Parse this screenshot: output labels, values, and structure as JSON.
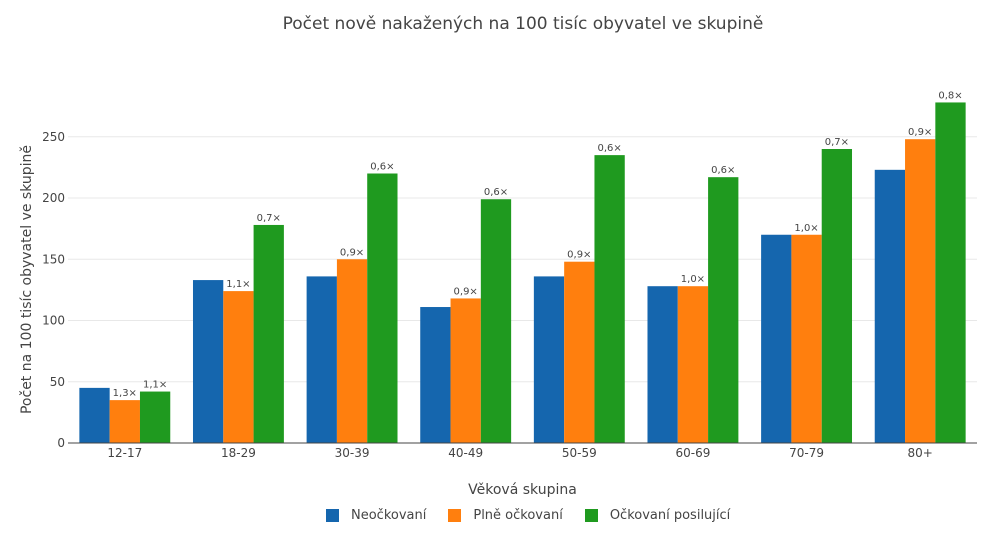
{
  "chart_data": {
    "type": "bar",
    "title": "Počet nově nakažených na 100 tisíc obyvatel ve skupině",
    "xlabel": "Věková skupina",
    "ylabel": "Počet na 100 tisíc obyvatel ve skupině",
    "ylim": [
      0,
      280
    ],
    "yticks": [
      0,
      50,
      100,
      150,
      200,
      250
    ],
    "grid": true,
    "legend_position": "bottom",
    "categories": [
      "12-17",
      "18-29",
      "30-39",
      "40-49",
      "50-59",
      "60-69",
      "70-79",
      "80+"
    ],
    "series": [
      {
        "name": "Neočkovaní",
        "color": "#1566ae",
        "values": [
          45,
          133,
          136,
          111,
          136,
          128,
          170,
          223
        ],
        "labels": [
          "",
          "",
          "",
          "",
          "",
          "",
          "",
          ""
        ]
      },
      {
        "name": "Plně očkovaní",
        "color": "#ff7f0e",
        "values": [
          35,
          124,
          150,
          118,
          148,
          128,
          170,
          248
        ],
        "labels": [
          "1,3×",
          "1,1×",
          "0,9×",
          "0,9×",
          "0,9×",
          "1,0×",
          "1,0×",
          "0,9×"
        ]
      },
      {
        "name": "Očkovaní posilující",
        "color": "#1f9a1f",
        "values": [
          42,
          178,
          220,
          199,
          235,
          217,
          240,
          278
        ],
        "labels": [
          "1,1×",
          "0,7×",
          "0,6×",
          "0,6×",
          "0,6×",
          "0,6×",
          "0,7×",
          "0,8×"
        ]
      }
    ]
  }
}
